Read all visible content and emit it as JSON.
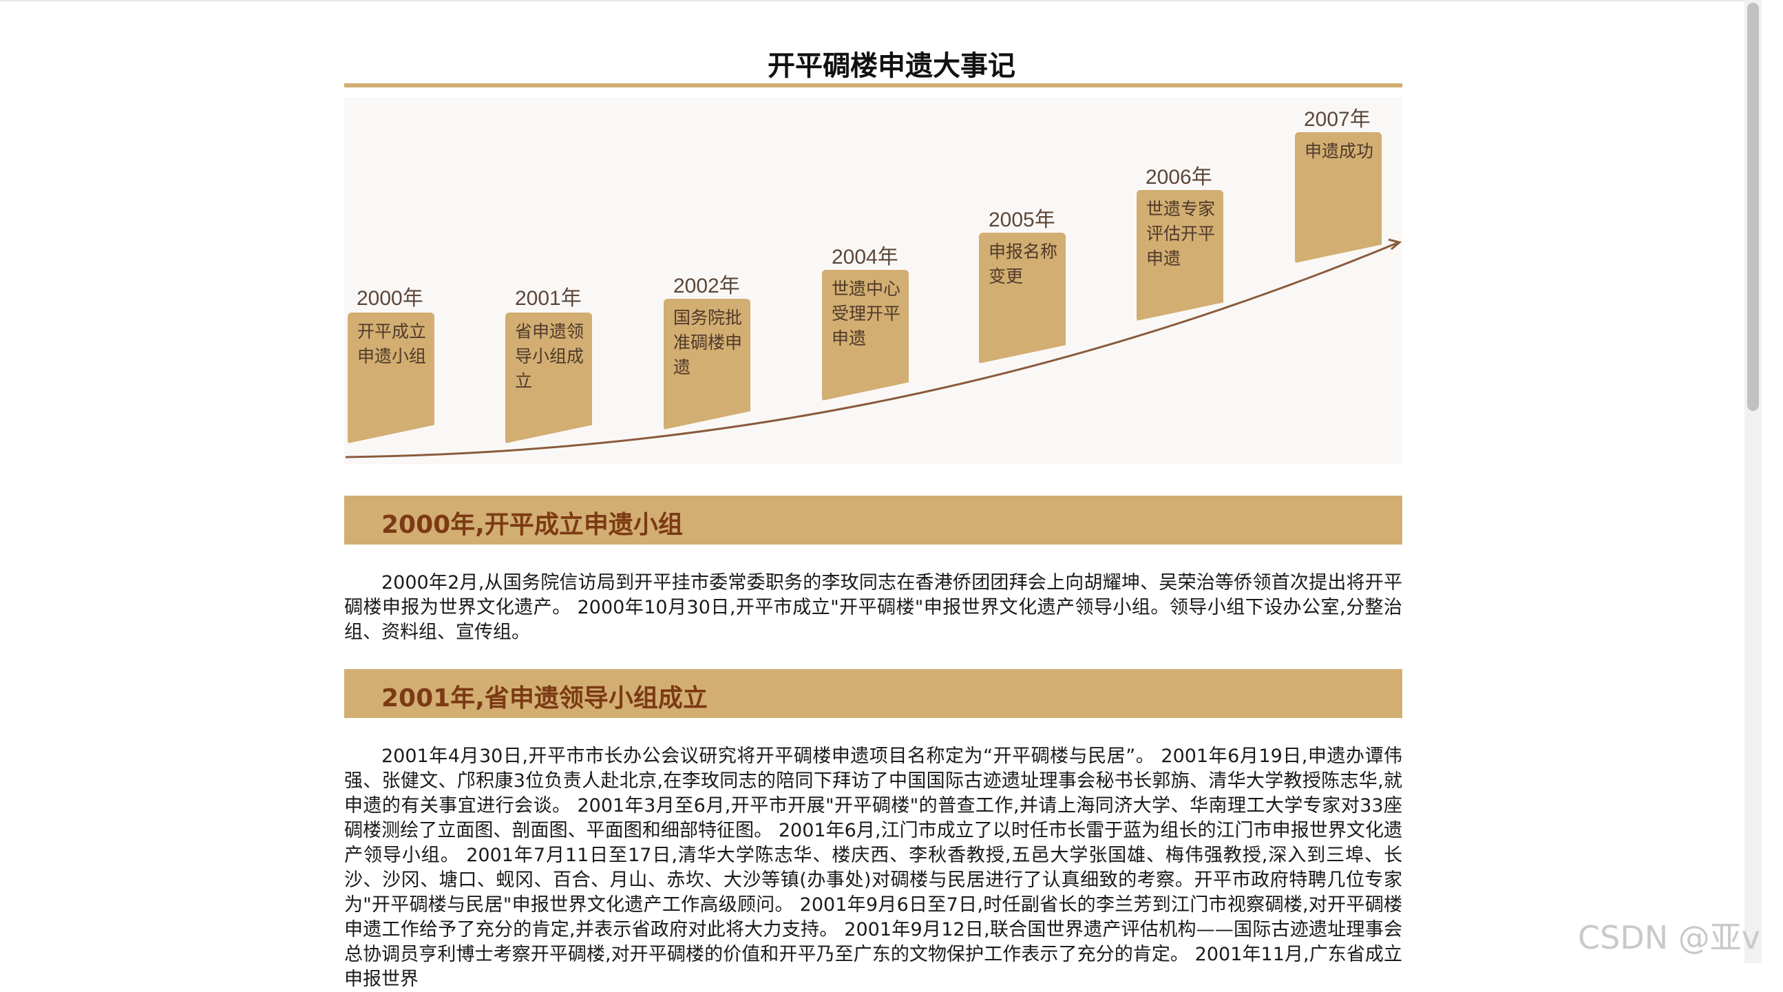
{
  "page": {
    "title": "开平碉楼申遗大事记"
  },
  "timeline": {
    "items": [
      {
        "year": "2000年",
        "text": "开平成立申遗小组"
      },
      {
        "year": "2001年",
        "text": "省申遗领导小组成立"
      },
      {
        "year": "2002年",
        "text": "国务院批准碉楼申遗"
      },
      {
        "year": "2004年",
        "text": "世遗中心受理开平申遗"
      },
      {
        "year": "2005年",
        "text": "申报名称变更"
      },
      {
        "year": "2006年",
        "text": "世遗专家评估开平申遗"
      },
      {
        "year": "2007年",
        "text": "申遗成功"
      }
    ]
  },
  "sections": [
    {
      "heading": "2000年,开平成立申遗小组",
      "body": "2000年2月,从国务院信访局到开平挂市委常委职务的李玫同志在香港侨团团拜会上向胡耀坤、吴荣治等侨领首次提出将开平碉楼申报为世界文化遗产。 2000年10月30日,开平市成立\"开平碉楼\"申报世界文化遗产领导小组。领导小组下设办公室,分整治组、资料组、宣传组。"
    },
    {
      "heading": "2001年,省申遗领导小组成立",
      "body": "2001年4月30日,开平市市长办公会议研究将开平碉楼申遗项目名称定为“开平碉楼与民居”。 2001年6月19日,申遗办谭伟强、张健文、邝积康3位负责人赴北京,在李玫同志的陪同下拜访了中国国际古迹遗址理事会秘书长郭旃、清华大学教授陈志华,就申遗的有关事宜进行会谈。 2001年3月至6月,开平市开展\"开平碉楼\"的普查工作,并请上海同济大学、华南理工大学专家对33座碉楼测绘了立面图、剖面图、平面图和细部特征图。 2001年6月,江门市成立了以时任市长雷于蓝为组长的江门市申报世界文化遗产领导小组。 2001年7月11日至17日,清华大学陈志华、楼庆西、李秋香教授,五邑大学张国雄、梅伟强教授,深入到三埠、长沙、沙冈、塘口、蚬冈、百合、月山、赤坎、大沙等镇(办事处)对碉楼与民居进行了认真细致的考察。开平市政府特聘几位专家为\"开平碉楼与民居\"申报世界文化遗产工作高级顾问。 2001年9月6日至7日,时任副省长的李兰芳到江门市视察碉楼,对开平碉楼申遗工作给予了充分的肯定,并表示省政府对此将大力支持。 2001年9月12日,联合国世界遗产评估机构——国际古迹遗址理事会总协调员亨利博士考察开平碉楼,对开平碉楼的价值和开平乃至广东的文物保护工作表示了充分的肯定。 2001年11月,广东省成立申报世界"
    }
  ],
  "watermark": {
    "text": "CSDN @亚v"
  },
  "colors": {
    "gold": "#d2ae72",
    "heading_text": "#7b3a14",
    "curve": "#8a5a3c"
  }
}
